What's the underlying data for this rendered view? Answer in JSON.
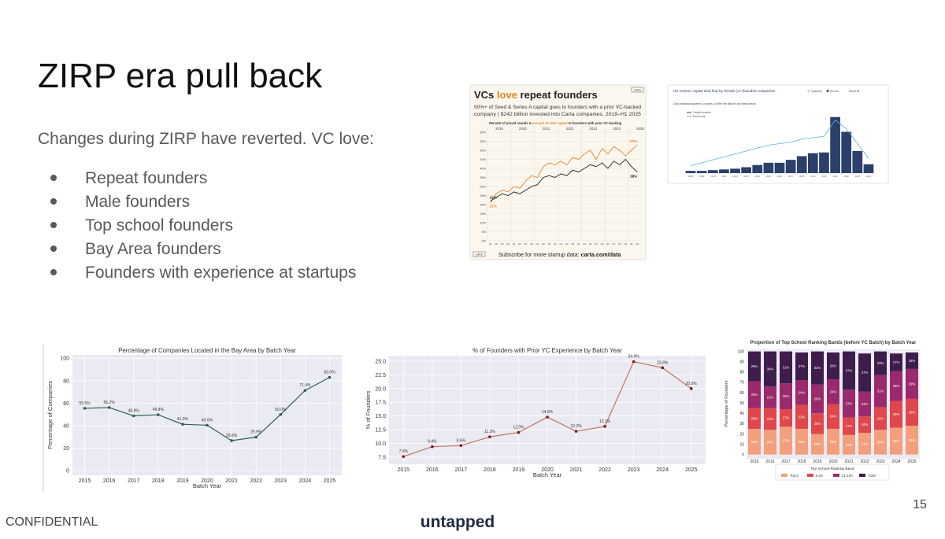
{
  "title": "ZIRP era pull back",
  "intro": "Changes during ZIRP have reverted. VC love:",
  "bullets": [
    "Repeat founders",
    "Male founders",
    "Top school founders",
    "Bay Area founders",
    "Founders with experience at startups"
  ],
  "footer": {
    "confidential": "CONFIDENTIAL",
    "brand": "untapped",
    "page_number": 15
  },
  "chart_data": [
    {
      "type": "line",
      "title_parts": [
        "VCs ",
        "love",
        " repeat founders"
      ],
      "logo": "carta",
      "subtitle_lines": [
        "50%+ of Seed & Series A capital goes to founders with a prior VC-backed",
        "company | $242 billion invested into Carta companies, 2019–H1 2025"
      ],
      "legend_parts": [
        "Percent of priced rounds & ",
        "percent of total capital",
        " to founders with prior VC-backing"
      ],
      "years": [
        "2019",
        "2020",
        "2021",
        "2022",
        "2023",
        "2024",
        "2025"
      ],
      "categories": [
        "Q1",
        "Q2",
        "Q3",
        "Q4",
        "Q1",
        "Q2",
        "Q3",
        "Q4",
        "Q1",
        "Q2",
        "Q3",
        "Q4",
        "Q1",
        "Q2",
        "Q3",
        "Q4",
        "Q1",
        "Q2",
        "Q3",
        "Q4",
        "Q1",
        "Q2",
        "Q3",
        "Q4",
        "Q1",
        "Q2"
      ],
      "series": [
        {
          "color": "#e2871f",
          "values": [
            21,
            26,
            28,
            27,
            30,
            29,
            33,
            36,
            35,
            41,
            43,
            42,
            44,
            42,
            46,
            45,
            48,
            50,
            45,
            51,
            48,
            52,
            50,
            47,
            50,
            53
          ],
          "value_labels": [
            "21%",
            null,
            null,
            null,
            null,
            null,
            null,
            null,
            null,
            null,
            null,
            null,
            null,
            null,
            null,
            null,
            null,
            null,
            null,
            null,
            null,
            null,
            null,
            null,
            null,
            "53%"
          ]
        },
        {
          "color": "#222222",
          "values": [
            22,
            24,
            26,
            25,
            27,
            26,
            28,
            30,
            31,
            35,
            36,
            35,
            37,
            36,
            39,
            38,
            40,
            42,
            41,
            43,
            40,
            44,
            42,
            45,
            41,
            38
          ],
          "value_labels": [
            "22%",
            null,
            null,
            null,
            null,
            null,
            null,
            null,
            null,
            null,
            null,
            null,
            null,
            null,
            null,
            null,
            null,
            null,
            null,
            null,
            null,
            null,
            null,
            null,
            null,
            "38%"
          ]
        }
      ],
      "ylim": [
        0,
        60
      ],
      "yticks": [
        {
          "value": 0,
          "label": "0%"
        },
        {
          "value": 5,
          "label": "5%"
        },
        {
          "value": 10,
          "label": "10%"
        },
        {
          "value": 15,
          "label": "15%"
        },
        {
          "value": 20,
          "label": "20%"
        },
        {
          "value": 25,
          "label": "25%"
        },
        {
          "value": 30,
          "label": "30%"
        },
        {
          "value": 35,
          "label": "35%"
        },
        {
          "value": 40,
          "label": "40%"
        },
        {
          "value": 45,
          "label": "45%"
        },
        {
          "value": 50,
          "label": "50%"
        },
        {
          "value": 55,
          "label": "55%"
        },
        {
          "value": 60,
          "label": "60%"
        }
      ],
      "grid": true,
      "footer_logo": "carta",
      "footer_parts": [
        "Subscribe for more startup data: ",
        "carta.com/data"
      ]
    },
    {
      "type": "bar",
      "title": "US venture capital deal flow by female (co-)founded companies",
      "controls": [
        "Quarterly",
        "Annual",
        "Reset all"
      ],
      "instruction": "Click individual quarters, or years, to filter the data for all charts below.",
      "categories": [
        "2008",
        "2009",
        "2010",
        "2011",
        "2012",
        "2013",
        "2014",
        "2015",
        "2016",
        "2017",
        "2018",
        "2019",
        "2020",
        "2021",
        "2022",
        "2023",
        "2024"
      ],
      "series": [
        {
          "name": "Capital invested",
          "color": "#2b3f6b",
          "values": [
            1.5,
            1.5,
            2,
            2.5,
            3,
            4,
            5.5,
            7,
            7,
            9,
            11.5,
            13.5,
            14,
            38,
            28,
            15,
            6
          ]
        },
        {
          "name": "Deal count",
          "color": "#5ab0d8",
          "axis": "y2",
          "values": [
            500,
            700,
            900,
            1100,
            1300,
            1500,
            1700,
            1900,
            2000,
            2100,
            2300,
            2400,
            2500,
            3600,
            3000,
            2000,
            1000
          ]
        }
      ],
      "ylim": [
        0,
        40
      ],
      "y2lim": [
        0,
        4000
      ]
    },
    {
      "type": "line",
      "title": "Percentage of Companies Located in the Bay Area by Batch Year",
      "xlabel": "Batch Year",
      "ylabel": "Percentage of Companies",
      "categories": [
        "2015",
        "2016",
        "2017",
        "2018",
        "2019",
        "2020",
        "2021",
        "2022",
        "2023",
        "2024",
        "2025"
      ],
      "values": [
        55.5,
        56.2,
        48.8,
        49.8,
        41.3,
        40.5,
        26.8,
        29.9,
        50.0,
        71.4,
        83.0
      ],
      "value_labels": [
        "55.5%",
        "56.2%",
        "48.8%",
        "49.8%",
        "41.3%",
        "40.5%",
        "26.8%",
        "29.9%",
        "50.0%",
        "71.4%",
        "83.0%"
      ],
      "color": "#2f6150",
      "ylim": [
        -4,
        103
      ],
      "yticks": [
        0,
        20,
        40,
        60,
        80,
        100
      ],
      "grid": true
    },
    {
      "type": "line",
      "title": "% of Founders with Prior YC Experience by Batch Year",
      "xlabel": "Batch Year",
      "ylabel": "% of Founders",
      "categories": [
        "2015",
        "2016",
        "2017",
        "2018",
        "2019",
        "2020",
        "2021",
        "2022",
        "2023",
        "2024",
        "2025"
      ],
      "values": [
        7.6,
        9.4,
        9.6,
        11.2,
        12.0,
        14.8,
        12.2,
        13.1,
        24.9,
        23.8,
        20.0
      ],
      "value_labels": [
        "7.6%",
        "9.4%",
        "9.6%",
        "11.2%",
        "12.0%",
        "14.8%",
        "12.2%",
        "13.1%",
        "24.9%",
        "23.8%",
        "20.0%"
      ],
      "color": "#c0735e",
      "marker_color": "#8b1010",
      "ylim": [
        6.2,
        26
      ],
      "yticks": [
        7.5,
        {
          "value": 10,
          "label": "10.0"
        },
        12.5,
        {
          "value": 15,
          "label": "15.0"
        },
        17.5,
        {
          "value": 20,
          "label": "20.0"
        },
        22.5,
        {
          "value": 25,
          "label": "25.0"
        }
      ],
      "grid": true
    },
    {
      "type": "stacked_bar",
      "title": "Proportion of Top School Ranking Bands (before YC Batch) by Batch Year",
      "ylabel": "Percentage of Founders",
      "legend_title": "Top School Ranking Band",
      "categories": [
        "2015",
        "2016",
        "2017",
        "2018",
        "2019",
        "2020",
        "2021",
        "2022",
        "2023",
        "2024",
        "2025"
      ],
      "series": [
        {
          "name": "Top 5",
          "color": "#f2a07b",
          "values": [
            25,
            24,
            27,
            25,
            20,
            25,
            19,
            21,
            24,
            26,
            28
          ],
          "value_labels": [
            "25%",
            "24%",
            "27%",
            "25%",
            "20%",
            "25%",
            "19%",
            "21%",
            "24%",
            "26%",
            "28%"
          ]
        },
        {
          "name": "6-20",
          "color": "#e0474c",
          "values": [
            20,
            21,
            17,
            23,
            20,
            24,
            17,
            16,
            22,
            26,
            26
          ],
          "value_labels": [
            "20%",
            "21%",
            "17%",
            "23%",
            "20%",
            "24%",
            "17%",
            "16%",
            "22%",
            "26%",
            "26%"
          ]
        },
        {
          "name": "21-100",
          "color": "#9a2a6c",
          "values": [
            26,
            21,
            25,
            24,
            28,
            24,
            27,
            24,
            31,
            29,
            29
          ],
          "value_labels": [
            "26%",
            "21%",
            "25%",
            "24%",
            "28%",
            "24%",
            "27%",
            "24%",
            "31%",
            "29%",
            "29%"
          ]
        },
        {
          "name": ">100",
          "color": "#3d1d4b",
          "values": [
            29,
            34,
            31,
            27,
            32,
            26,
            37,
            37,
            23,
            17,
            16
          ],
          "value_labels": [
            "29%",
            "34%",
            "31%",
            "27%",
            "32%",
            "26%",
            "37%",
            "37%",
            "23%",
            "17%",
            "16%"
          ]
        }
      ],
      "ylim": [
        -4,
        102
      ],
      "yticks": [
        0,
        10,
        20,
        30,
        40,
        50,
        60,
        70,
        80,
        90,
        100
      ],
      "grid": true
    }
  ]
}
